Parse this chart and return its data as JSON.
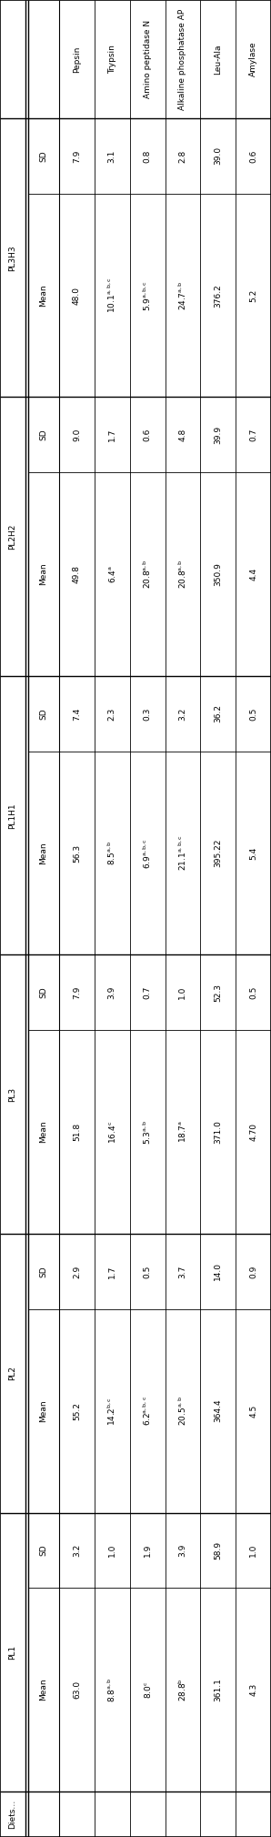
{
  "col_headers": [
    "PL3H3",
    "PL2H2",
    "PL1H1",
    "PL3",
    "PL2",
    "PL1"
  ],
  "row_labels": [
    "Pepsin",
    "Trypsin",
    "Amino peptidase N",
    "Alkaline phosphatase AP",
    "Leu-Ala",
    "Amylase"
  ],
  "data_mean": [
    [
      "63.0",
      "55.2",
      "51.8",
      "56.3",
      "49.8",
      "48.0"
    ],
    [
      "8.8^{a,b}",
      "14.2^{b,c}",
      "16.4^{c}",
      "8.5^{a,b}",
      "6.4^{a}",
      "10.1^{a,b,c}"
    ],
    [
      "8.0^{c}",
      "6.2^{a,b,c}",
      "5.3^{a,b}",
      "6.9^{a,b,c}",
      "20.8^{a,b}",
      "5.9^{a,b,c}"
    ],
    [
      "28.8^{b}",
      "20.5^{a,b}",
      "18.7^{a}",
      "21.1^{a,b,c}",
      "20.8^{a,b}",
      "24.7^{a,b}"
    ],
    [
      "361.1",
      "364.4",
      "371.0",
      "395.22",
      "350.9",
      "376.2"
    ],
    [
      "4.3",
      "4.5",
      "4.70",
      "5.4",
      "4.4",
      "5.2"
    ]
  ],
  "data_sd": [
    [
      "3.2",
      "2.9",
      "7.9",
      "7.4",
      "9.0",
      "7.9"
    ],
    [
      "1.0",
      "1.7",
      "3.9",
      "2.3",
      "1.7",
      "3.1"
    ],
    [
      "1.9",
      "0.5",
      "0.7",
      "0.3",
      "0.6",
      "0.8"
    ],
    [
      "3.9",
      "3.7",
      "1.0",
      "3.2",
      "4.8",
      "2.8"
    ],
    [
      "58.9",
      "14.0",
      "52.3",
      "36.2",
      "39.9",
      "39.0"
    ],
    [
      "1.0",
      "0.9",
      "0.5",
      "0.5",
      "0.7",
      "0.6"
    ]
  ],
  "diets_label": "Diets…",
  "figsize": [
    2.98,
    20.19
  ],
  "dpi": 100,
  "fontsize": 6.5,
  "bg_color": "#ffffff",
  "line_color": "#000000",
  "text_color": "#000000"
}
